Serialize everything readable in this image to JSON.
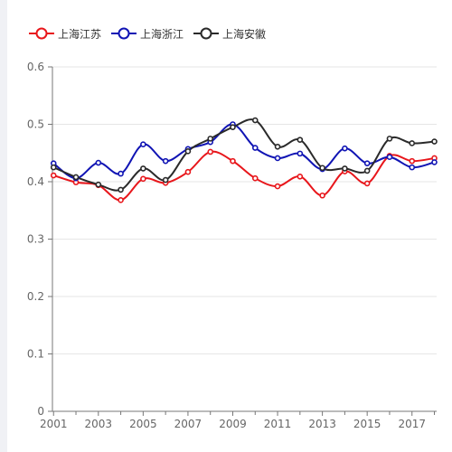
{
  "chart_data": {
    "type": "line",
    "title": "",
    "xlabel": "",
    "ylabel": "",
    "x": [
      2001,
      2002,
      2003,
      2004,
      2005,
      2006,
      2007,
      2008,
      2009,
      2010,
      2011,
      2012,
      2013,
      2014,
      2015,
      2016,
      2017,
      2018
    ],
    "x_tick_labels": [
      "2001",
      "2003",
      "2005",
      "2007",
      "2009",
      "2011",
      "2013",
      "2015",
      "2017"
    ],
    "x_tick_values": [
      2001,
      2003,
      2005,
      2007,
      2009,
      2011,
      2013,
      2015,
      2017
    ],
    "ylim": [
      0,
      0.6
    ],
    "y_ticks": [
      0,
      0.1,
      0.2,
      0.3,
      0.4,
      0.5,
      0.6
    ],
    "y_tick_labels": [
      "0",
      "0.1",
      "0.2",
      "0.3",
      "0.4",
      "0.5",
      "0.6"
    ],
    "grid": true,
    "legend_position": "top-left",
    "series": [
      {
        "name": "上海江苏",
        "color": "#e8161b",
        "values": [
          0.411,
          0.399,
          0.394,
          0.368,
          0.405,
          0.398,
          0.417,
          0.452,
          0.436,
          0.406,
          0.392,
          0.409,
          0.376,
          0.418,
          0.397,
          0.445,
          0.436,
          0.441
        ]
      },
      {
        "name": "上海浙江",
        "color": "#1014b4",
        "values": [
          0.432,
          0.406,
          0.433,
          0.414,
          0.465,
          0.436,
          0.457,
          0.469,
          0.5,
          0.459,
          0.441,
          0.449,
          0.422,
          0.458,
          0.432,
          0.443,
          0.425,
          0.434
        ]
      },
      {
        "name": "上海安徽",
        "color": "#2a2a2a",
        "values": [
          0.425,
          0.408,
          0.395,
          0.386,
          0.423,
          0.403,
          0.453,
          0.475,
          0.495,
          0.507,
          0.461,
          0.473,
          0.424,
          0.423,
          0.419,
          0.475,
          0.467,
          0.47
        ]
      }
    ]
  }
}
